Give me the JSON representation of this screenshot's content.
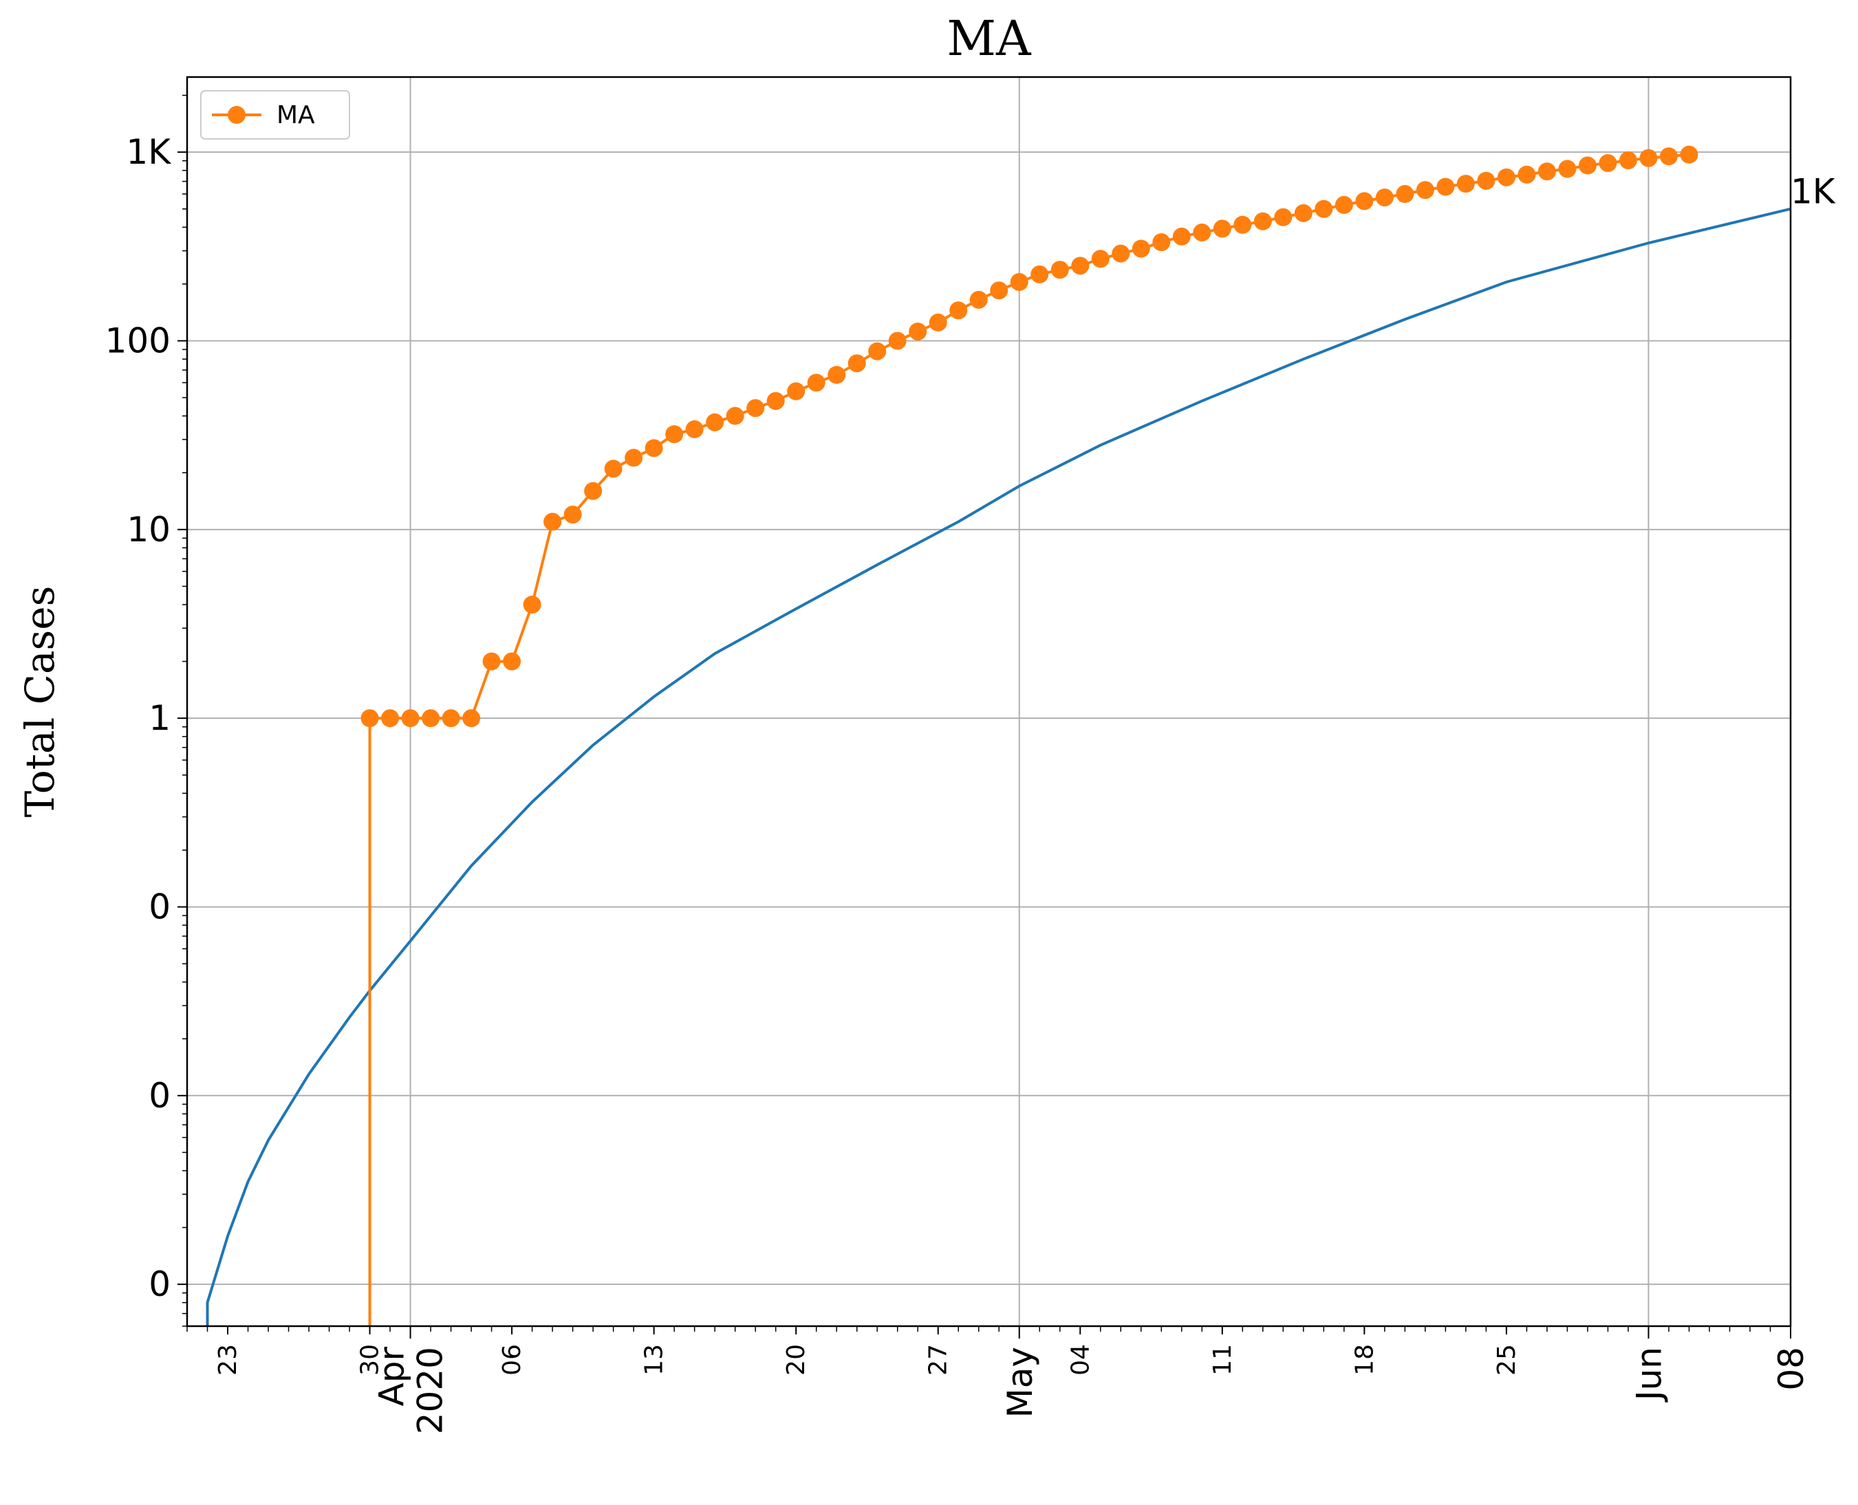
{
  "chart_data": {
    "type": "line",
    "title": "MA",
    "xlabel": "",
    "ylabel": "Total Cases",
    "y_scale": "log",
    "ylim": [
      0.0006,
      2500
    ],
    "xlim": [
      "2020-03-21",
      "2020-06-08"
    ],
    "grid": true,
    "legend_position": "top-left",
    "y_ticks": [
      {
        "value": 0.001,
        "label": "0"
      },
      {
        "value": 0.01,
        "label": "0"
      },
      {
        "value": 0.1,
        "label": "0"
      },
      {
        "value": 1,
        "label": "1"
      },
      {
        "value": 10,
        "label": "10"
      },
      {
        "value": 100,
        "label": "100"
      },
      {
        "value": 1000,
        "label": "1K"
      }
    ],
    "x_major_ticks": [
      {
        "date": "2020-04-01",
        "label": "Apr\n2020"
      },
      {
        "date": "2020-05-01",
        "label": "May"
      },
      {
        "date": "2020-06-01",
        "label": "Jun"
      },
      {
        "date": "2020-06-08",
        "label": "08"
      }
    ],
    "x_minor_ticks": [
      {
        "date": "2020-03-23",
        "label": "23"
      },
      {
        "date": "2020-03-30",
        "label": "30"
      },
      {
        "date": "2020-04-06",
        "label": "06"
      },
      {
        "date": "2020-04-13",
        "label": "13"
      },
      {
        "date": "2020-04-20",
        "label": "20"
      },
      {
        "date": "2020-04-27",
        "label": "27"
      },
      {
        "date": "2020-05-04",
        "label": "04"
      },
      {
        "date": "2020-05-11",
        "label": "11"
      },
      {
        "date": "2020-05-18",
        "label": "18"
      },
      {
        "date": "2020-05-25",
        "label": "25"
      }
    ],
    "series": [
      {
        "name": "MA",
        "color": "#ff7f0e",
        "marker": "circle",
        "start_date": "2020-03-30",
        "values": [
          1,
          1,
          1,
          1,
          1,
          1,
          2,
          2,
          4,
          11,
          12,
          16,
          21,
          24,
          27,
          32,
          34,
          37,
          40,
          44,
          48,
          54,
          60,
          66,
          76,
          88,
          100,
          112,
          125,
          145,
          165,
          185,
          205,
          225,
          238,
          250,
          272,
          290,
          308,
          333,
          357,
          375,
          393,
          412,
          430,
          452,
          475,
          500,
          525,
          550,
          575,
          600,
          630,
          655,
          680,
          705,
          735,
          760,
          790,
          815,
          850,
          875,
          905,
          930,
          950,
          970
        ]
      },
      {
        "color": "#1f77b4",
        "fit_points": [
          [
            "2020-03-22",
            0.0004
          ],
          [
            "2020-03-22",
            0.0008
          ],
          [
            "2020-03-23",
            0.0018
          ],
          [
            "2020-03-24",
            0.0035
          ],
          [
            "2020-03-25",
            0.0058
          ],
          [
            "2020-03-27",
            0.013
          ],
          [
            "2020-03-29",
            0.026
          ],
          [
            "2020-03-30",
            0.036
          ],
          [
            "2020-04-01",
            0.066
          ],
          [
            "2020-04-04",
            0.165
          ],
          [
            "2020-04-07",
            0.36
          ],
          [
            "2020-04-10",
            0.72
          ],
          [
            "2020-04-13",
            1.3
          ],
          [
            "2020-04-16",
            2.2
          ],
          [
            "2020-04-20",
            3.8
          ],
          [
            "2020-04-24",
            6.5
          ],
          [
            "2020-04-28",
            11
          ],
          [
            "2020-05-01",
            17
          ],
          [
            "2020-05-05",
            28
          ],
          [
            "2020-05-10",
            48
          ],
          [
            "2020-05-15",
            80
          ],
          [
            "2020-05-20",
            130
          ],
          [
            "2020-05-25",
            205
          ],
          [
            "2020-06-01",
            330
          ],
          [
            "2020-06-08",
            500
          ]
        ]
      }
    ],
    "annotations": [
      {
        "text": "1K",
        "anchor": "end-of-fit-line"
      }
    ]
  }
}
